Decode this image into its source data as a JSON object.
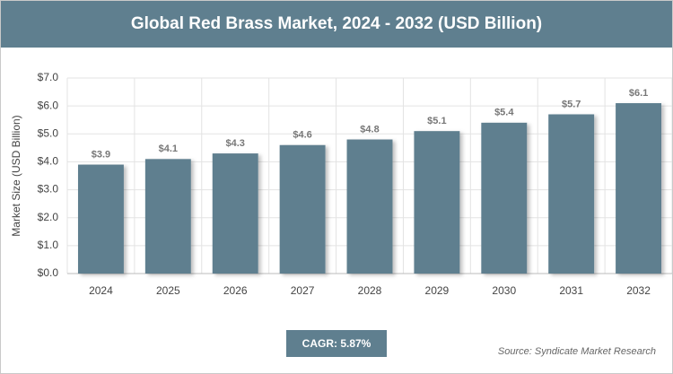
{
  "chart_data": {
    "type": "bar",
    "title": "Global Red Brass Market, 2024 - 2032 (USD Billion)",
    "y_label": "Market Size (USD Billion)",
    "categories": [
      "2024",
      "2025",
      "2026",
      "2027",
      "2028",
      "2029",
      "2030",
      "2031",
      "2032"
    ],
    "values": [
      3.9,
      4.1,
      4.3,
      4.6,
      4.8,
      5.1,
      5.4,
      5.7,
      6.1
    ],
    "value_labels": [
      "$3.9",
      "$4.1",
      "$4.3",
      "$4.6",
      "$4.8",
      "$5.1",
      "$5.4",
      "$5.7",
      "$6.1"
    ],
    "color": "#5f7f8f",
    "ylim": [
      0,
      7
    ],
    "yticks": [
      {
        "value": 0,
        "label": "$0.0"
      },
      {
        "value": 1,
        "label": "$1.0"
      },
      {
        "value": 2,
        "label": "$2.0"
      },
      {
        "value": 3,
        "label": "$3.0"
      },
      {
        "value": 4,
        "label": "$4.0"
      },
      {
        "value": 5,
        "label": "$5.0"
      },
      {
        "value": 6,
        "label": "$6.0"
      },
      {
        "value": 7,
        "label": "$7.0"
      }
    ],
    "grid": true,
    "cagr": "CAGR: 5.87%",
    "source": "Source: Syndicate Market Research"
  }
}
